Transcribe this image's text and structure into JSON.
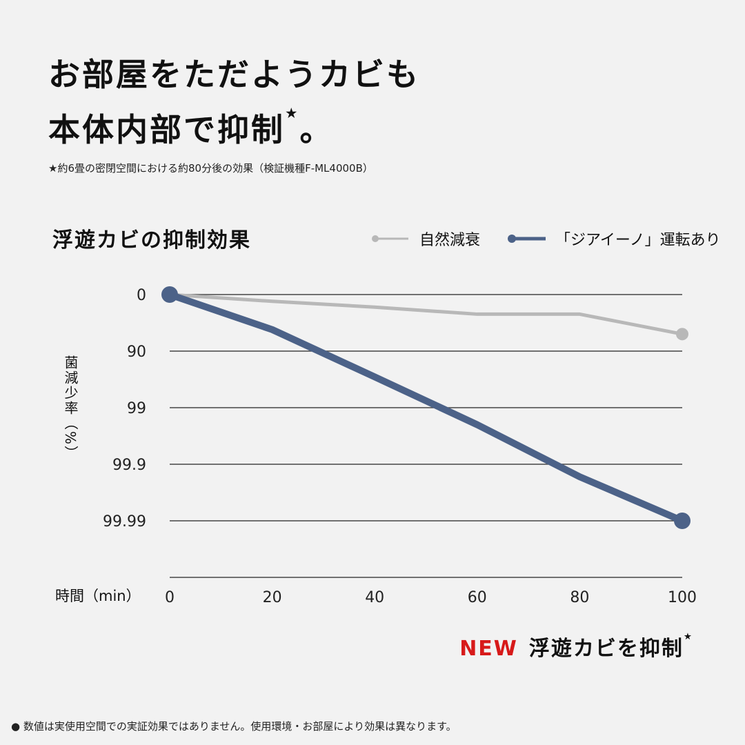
{
  "headline": {
    "line1": "お部屋をただようカビも",
    "line2": "本体内部で抑制",
    "mark": "★",
    "end": "。"
  },
  "note": "★約6畳の密閉空間における約80分後の効果（検証機種F-ML4000B）",
  "footer": "● 数値は実使用空間での実証効果ではありません。使用環境・お部屋により効果は異なります。",
  "badge": {
    "new": "NEW",
    "text": "浮遊カビを抑制",
    "mark": "★"
  },
  "colors": {
    "natural": "#b8b8b8",
    "ionizer": "#4c6288",
    "new": "#d71a1a",
    "grid": "#444444"
  },
  "chart_data": {
    "type": "line",
    "title": "浮遊カビの抑制効果",
    "ylabel": "菌減少率（%）",
    "xlabel": "時間（min）",
    "x": [
      0,
      20,
      40,
      60,
      80,
      100
    ],
    "xticks": [
      "0",
      "20",
      "40",
      "60",
      "80",
      "100"
    ],
    "yticks": [
      "0",
      "90",
      "99",
      "99.9",
      "99.99"
    ],
    "y_scale": "log-reduction",
    "grid": true,
    "legend_position": "top-right",
    "series": [
      {
        "name": "自然減衰",
        "values": [
          0,
          24,
          40,
          55,
          55,
          80
        ]
      },
      {
        "name": "「ジアイーノ」運転あり",
        "values": [
          0,
          76,
          96.5,
          99.5,
          99.94,
          99.99
        ]
      }
    ]
  }
}
